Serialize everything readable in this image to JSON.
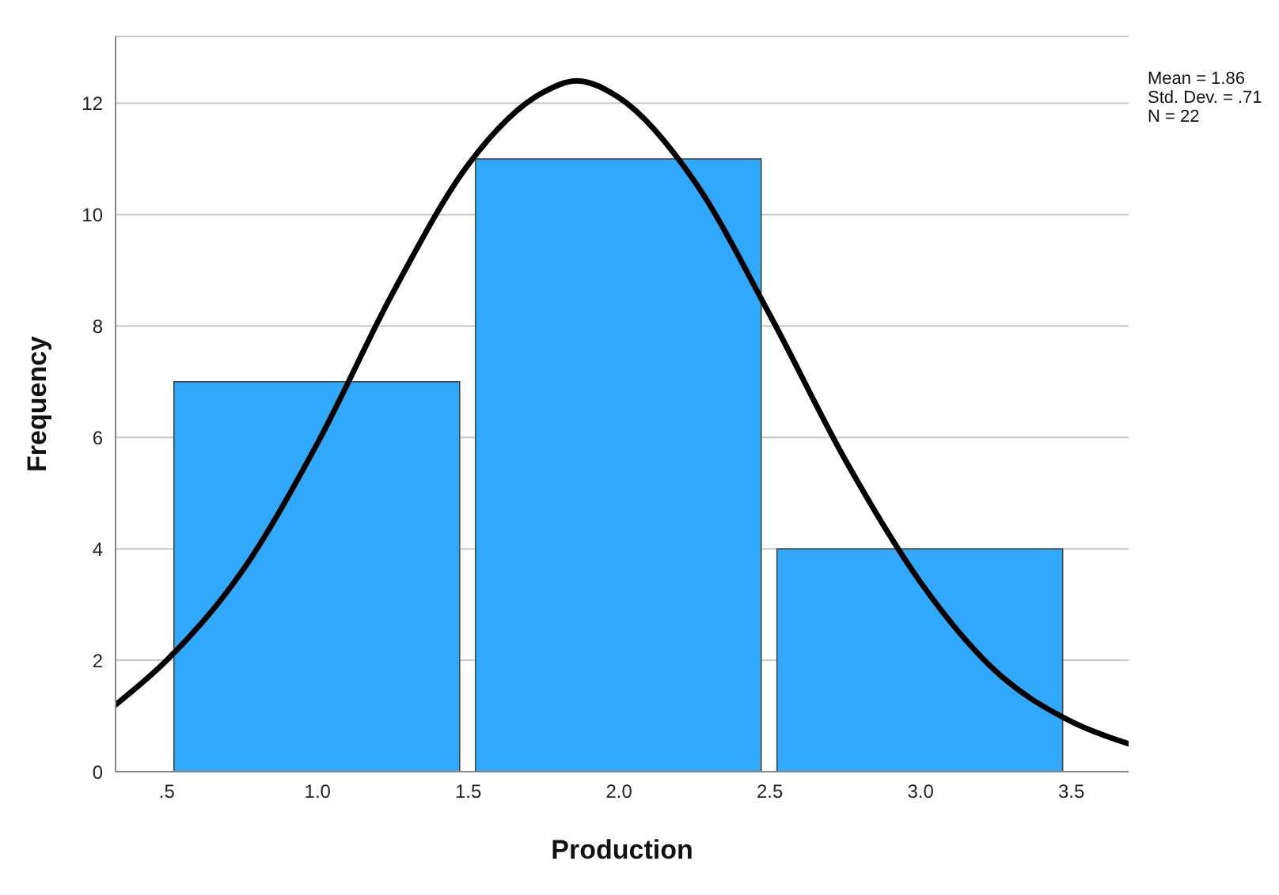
{
  "chart_data": {
    "type": "histogram",
    "xlabel": "Production",
    "ylabel": "Frequency",
    "bins": [
      0.5,
      1.5,
      2.5,
      3.5
    ],
    "values": [
      7,
      11,
      4
    ],
    "color": "#31a9fa",
    "series": [
      {
        "type": "line",
        "color": "#000000",
        "x": [
          0.33,
          0.5,
          0.75,
          1.0,
          1.25,
          1.5,
          1.75,
          1.86,
          2.0,
          2.25,
          2.5,
          2.75,
          3.0,
          3.25,
          3.5,
          3.69
        ],
        "values": [
          1.2,
          2.0,
          3.6,
          5.9,
          8.6,
          10.9,
          12.2,
          12.4,
          12.1,
          10.6,
          8.2,
          5.6,
          3.4,
          1.8,
          0.9,
          0.5
        ]
      }
    ],
    "xlim": [
      0.33,
      3.69
    ],
    "xticks": [
      {
        "value": 0.5,
        "label": ".5"
      },
      {
        "value": 1,
        "label": "1.0"
      },
      {
        "value": 1.5,
        "label": "1.5"
      },
      {
        "value": 2,
        "label": "2.0"
      },
      {
        "value": 2.5,
        "label": "2.5"
      },
      {
        "value": 3,
        "label": "3.0"
      },
      {
        "value": 3.5,
        "label": "3.5"
      }
    ],
    "ylim": [
      0,
      13.2
    ],
    "yticks": [
      0,
      2,
      4,
      6,
      8,
      10,
      12
    ],
    "grid": "y",
    "legend": false,
    "marker": "none",
    "line_style": "solid",
    "annotations": [
      "Mean = 1.86",
      "Std. Dev. = .71",
      "N = 22"
    ]
  }
}
